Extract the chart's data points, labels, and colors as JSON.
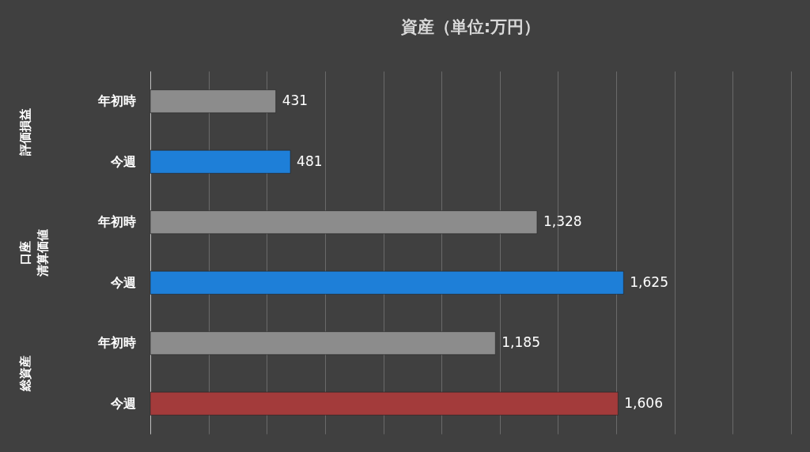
{
  "chart_data": {
    "type": "bar",
    "orientation": "horizontal",
    "title": "資産（単位:万円）",
    "categories": [
      "年初時",
      "今週",
      "年初時",
      "今週",
      "年初時",
      "今週"
    ],
    "values": [
      431,
      481,
      1328,
      1625,
      1185,
      1606
    ],
    "colors": [
      "#8c8c8c",
      "#1e7fd8",
      "#8c8c8c",
      "#1e7fd8",
      "#8c8c8c",
      "#a33b3b"
    ],
    "annotations": [
      "評価損益",
      "口座清算価値",
      "総資産"
    ],
    "value_labels": [
      "431",
      "481",
      "1,328",
      "1,625",
      "1,185",
      "1,606"
    ],
    "xlim": [
      0,
      2200
    ],
    "xticks": [
      {
        "value": 0,
        "label": null
      },
      {
        "value": 200,
        "label": null
      },
      {
        "value": 400,
        "label": null
      },
      {
        "value": 600,
        "label": null
      },
      {
        "value": 800,
        "label": null
      },
      {
        "value": 1000,
        "label": null
      },
      {
        "value": 1200,
        "label": null
      },
      {
        "value": 1400,
        "label": null
      },
      {
        "value": 1600,
        "label": null
      },
      {
        "value": 1800,
        "label": null
      },
      {
        "value": 2000,
        "label": null
      },
      {
        "value": 2200,
        "label": null
      }
    ],
    "grid": "x",
    "tick_labels": "y"
  }
}
